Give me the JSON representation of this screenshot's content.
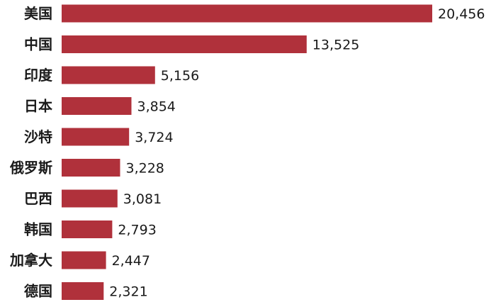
{
  "chart_data": {
    "type": "bar",
    "orientation": "horizontal",
    "categories": [
      "美国",
      "中国",
      "印度",
      "日本",
      "沙特",
      "俄罗斯",
      "巴西",
      "韩国",
      "加拿大",
      "德国"
    ],
    "values": [
      20456,
      13525,
      5156,
      3854,
      3724,
      3228,
      3081,
      2793,
      2447,
      2321
    ],
    "value_labels": [
      "20,456",
      "13,525",
      "5,156",
      "3,854",
      "3,724",
      "3,228",
      "3,081",
      "2,793",
      "2,447",
      "2,321"
    ],
    "title": "",
    "xlabel": "",
    "ylabel": "",
    "xlim": [
      0,
      20456
    ],
    "grid": false,
    "bar_color": "#b0313b"
  }
}
